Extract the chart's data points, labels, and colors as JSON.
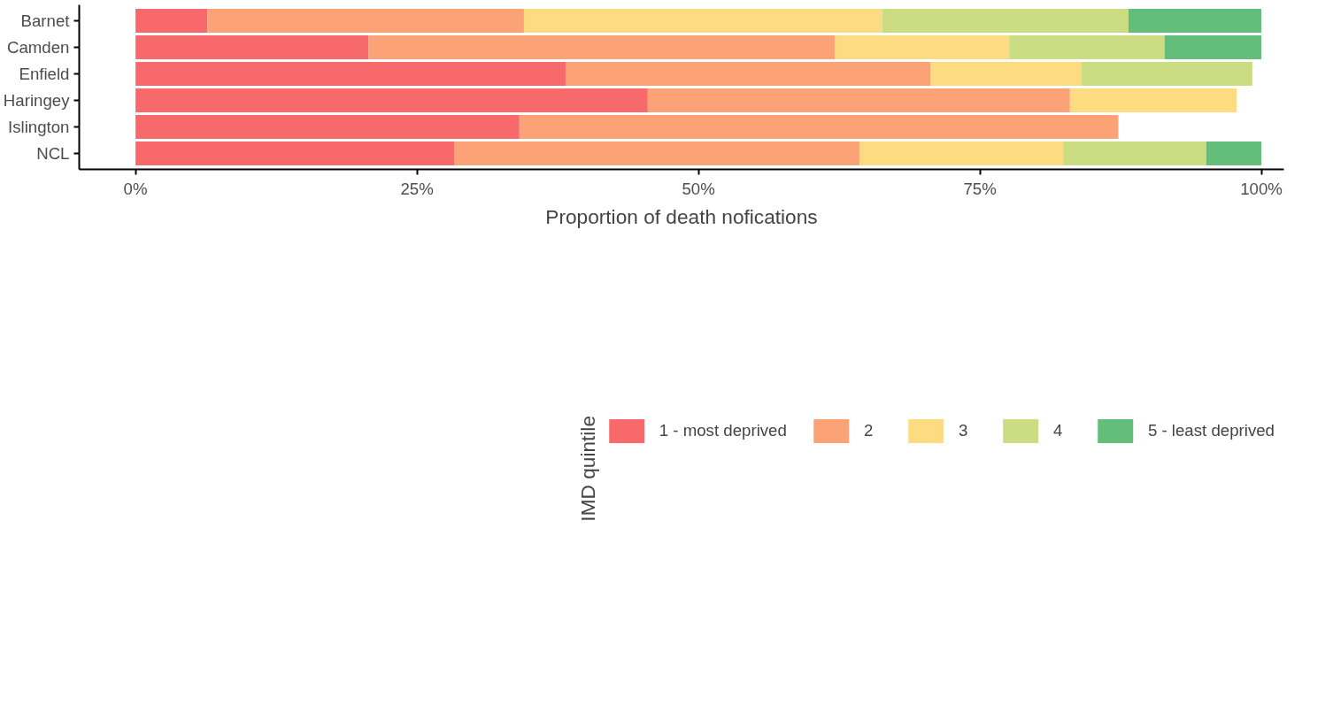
{
  "chart_data": {
    "type": "bar",
    "orientation": "horizontal",
    "stacked": true,
    "xlabel": "Proportion of death nofications",
    "legend_title": "IMD quintile",
    "legend": "bottom",
    "grid": false,
    "categories": [
      "Barnet",
      "Camden",
      "Enfield",
      "Haringey",
      "Islington",
      "NCL"
    ],
    "xlim": [
      -5,
      102
    ],
    "xticks": [
      {
        "value": 0,
        "label": "0%"
      },
      {
        "value": 25,
        "label": "25%"
      },
      {
        "value": 50,
        "label": "50%"
      },
      {
        "value": 75,
        "label": "75%"
      },
      {
        "value": 100,
        "label": "100%"
      }
    ],
    "series": [
      {
        "name": "1 - most deprived",
        "color": "#f8696b",
        "values": [
          6.4,
          20.7,
          38.2,
          45.5,
          34.1,
          28.3
        ]
      },
      {
        "name": "2",
        "color": "#fba276",
        "values": [
          28.1,
          41.4,
          32.4,
          37.5,
          53.2,
          36.0
        ]
      },
      {
        "name": "3",
        "color": "#fddb81",
        "values": [
          31.8,
          15.5,
          13.4,
          14.8,
          null,
          18.1
        ]
      },
      {
        "name": "4",
        "color": "#cbdc82",
        "values": [
          21.9,
          13.8,
          15.2,
          null,
          null,
          12.7
        ]
      },
      {
        "name": "5 - least deprived",
        "color": "#63be7b",
        "values": [
          11.8,
          8.6,
          null,
          null,
          null,
          4.9
        ]
      }
    ]
  }
}
